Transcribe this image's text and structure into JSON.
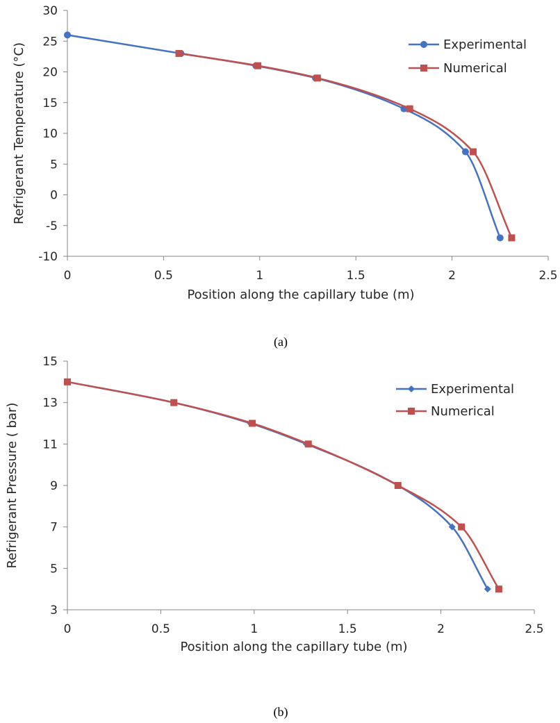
{
  "colors": {
    "experimental": "#4472C4",
    "numerical": "#C0504D",
    "axis": "#868686"
  },
  "chart_data": [
    {
      "type": "line",
      "caption": "(a)",
      "xlabel": "Position along the capillary tube (m)",
      "ylabel": "Refrigerant Temperature (°C)",
      "xlim": [
        0,
        2.5
      ],
      "ylim": [
        -10,
        30
      ],
      "xticks": [
        0,
        0.5,
        1,
        1.5,
        2,
        2.5
      ],
      "yticks": [
        -10,
        -5,
        0,
        5,
        10,
        15,
        20,
        25,
        30
      ],
      "xtick_labels": [
        "0",
        "0.5",
        "1",
        "1.5",
        "2",
        "2.5"
      ],
      "ytick_labels": [
        "-10",
        "-5",
        "0",
        "5",
        "10",
        "15",
        "20",
        "25",
        "30"
      ],
      "grid": false,
      "legend_position": "top-right",
      "series": [
        {
          "name": "Experimental",
          "marker": "circle",
          "color": "#4472C4",
          "x": [
            0,
            0.59,
            0.98,
            1.29,
            1.75,
            2.07,
            2.25
          ],
          "y": [
            26,
            23,
            21,
            19,
            14,
            7,
            -7
          ]
        },
        {
          "name": "Numerical",
          "marker": "square",
          "color": "#C0504D",
          "x": [
            0.58,
            0.99,
            1.3,
            1.78,
            2.11,
            2.31
          ],
          "y": [
            23,
            21,
            19,
            14,
            7,
            -7
          ]
        }
      ]
    },
    {
      "type": "line",
      "caption": "(b)",
      "xlabel": "Position along the capillary tube (m)",
      "ylabel": "Refrigerant Pressure ( bar)",
      "xlim": [
        0,
        2.5
      ],
      "ylim": [
        3,
        15
      ],
      "xticks": [
        0,
        0.5,
        1,
        1.5,
        2,
        2.5
      ],
      "yticks": [
        3,
        5,
        7,
        9,
        11,
        13,
        15
      ],
      "xtick_labels": [
        "0",
        "0.5",
        "1",
        "1.5",
        "2",
        "2.5"
      ],
      "ytick_labels": [
        "3",
        "5",
        "7",
        "9",
        "11",
        "13",
        "15"
      ],
      "grid": false,
      "legend_position": "top-right",
      "series": [
        {
          "name": "Experimental",
          "marker": "diamond",
          "color": "#4472C4",
          "x": [
            0,
            0.57,
            0.98,
            1.28,
            1.77,
            2.06,
            2.25
          ],
          "y": [
            14,
            13,
            12,
            11,
            9,
            7,
            4
          ]
        },
        {
          "name": "Numerical",
          "marker": "square",
          "color": "#C0504D",
          "x": [
            0,
            0.57,
            0.99,
            1.29,
            1.77,
            2.11,
            2.31
          ],
          "y": [
            14,
            13,
            12,
            11,
            9,
            7,
            4
          ]
        }
      ]
    }
  ]
}
